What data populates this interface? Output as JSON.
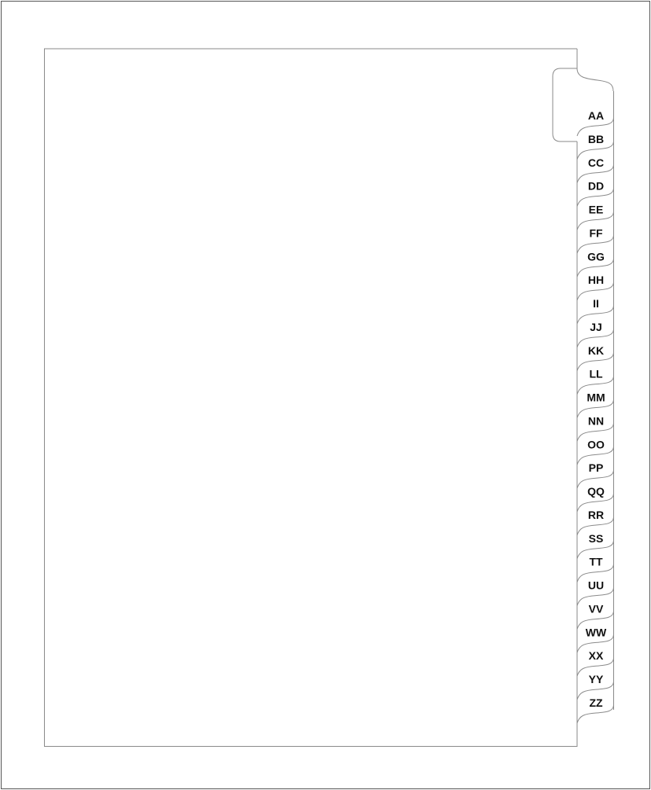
{
  "document": {
    "type": "index tab divider template",
    "tabs": [
      "AA",
      "BB",
      "CC",
      "DD",
      "EE",
      "FF",
      "GG",
      "HH",
      "II",
      "JJ",
      "KK",
      "LL",
      "MM",
      "NN",
      "OO",
      "PP",
      "QQ",
      "RR",
      "SS",
      "TT",
      "UU",
      "VV",
      "WW",
      "XX",
      "YY",
      "ZZ"
    ],
    "colors": {
      "line": "#8a8a8a",
      "text": "#111111"
    }
  }
}
